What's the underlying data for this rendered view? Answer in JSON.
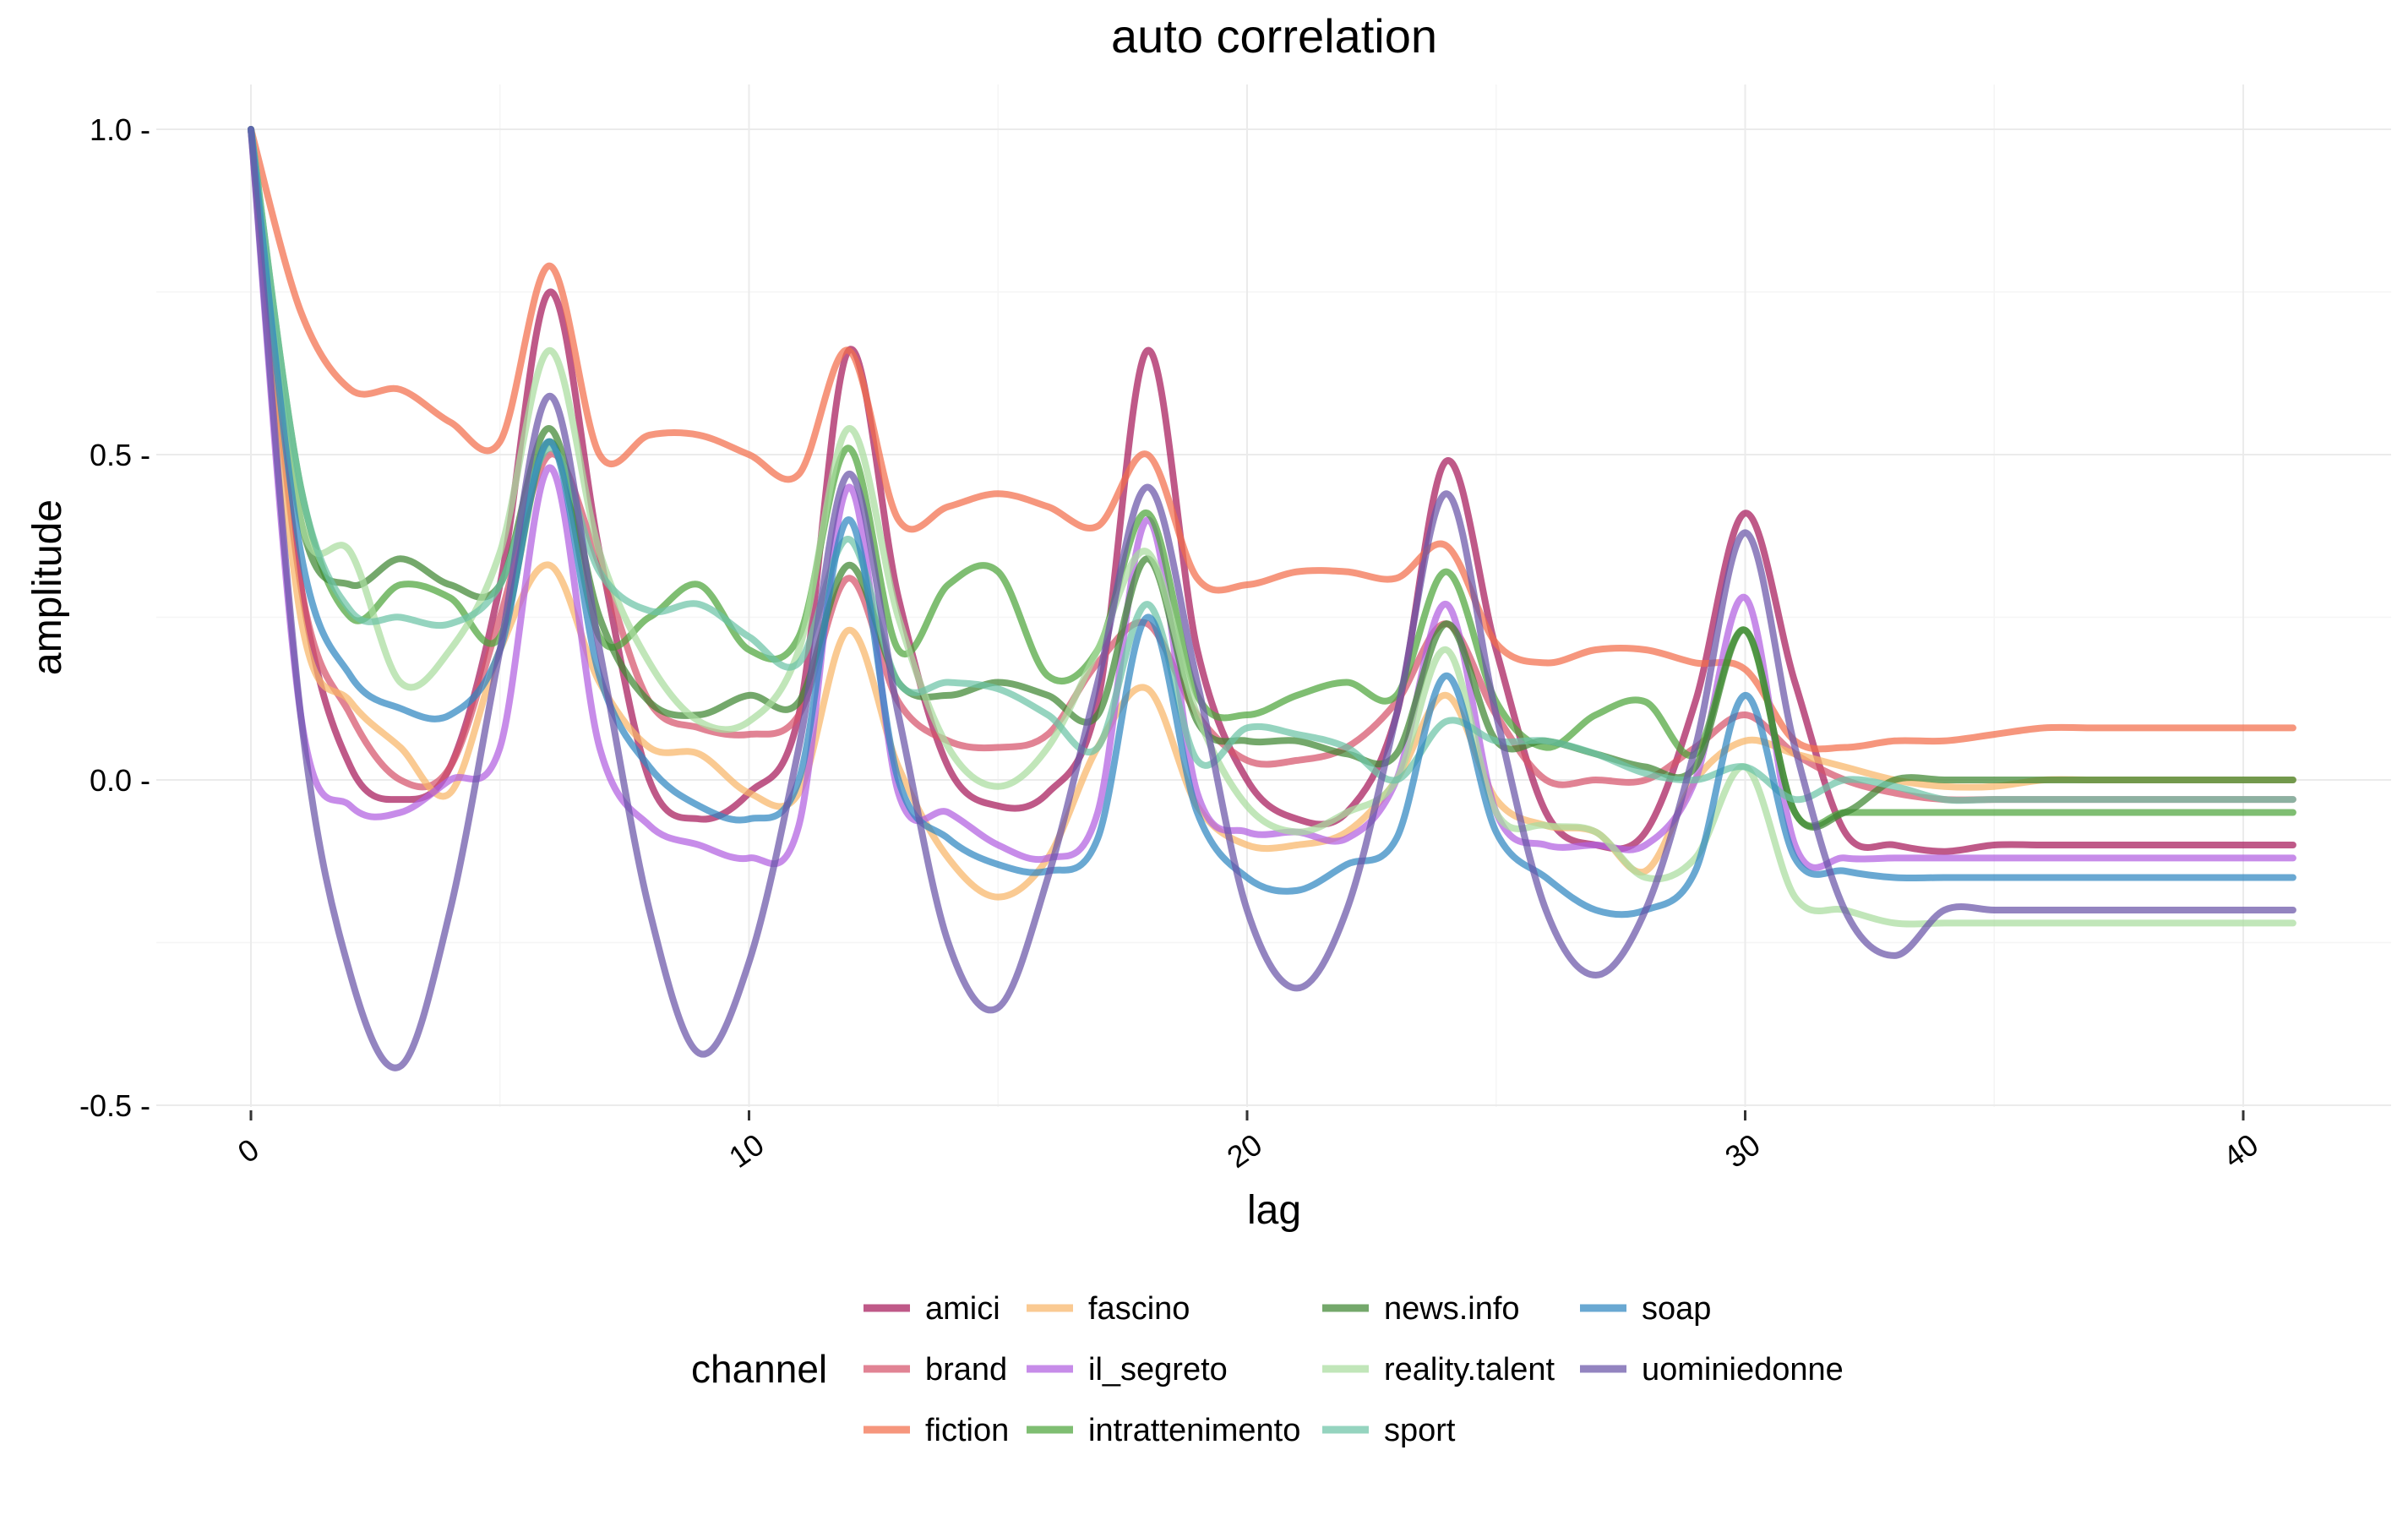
{
  "chart_data": {
    "type": "line",
    "title": "auto correlation",
    "xlabel": "lag",
    "ylabel": "amplitude",
    "xlim": [
      0,
      41
    ],
    "ylim": [
      -0.5,
      1.0
    ],
    "x_ticks": [
      0,
      10,
      20,
      30,
      40
    ],
    "x_tick_labels": [
      "0",
      "10",
      "20",
      "30",
      "40"
    ],
    "y_ticks": [
      1.0,
      0.5,
      0.0,
      -0.5
    ],
    "y_tick_labels": [
      "1.0 -",
      "0.5 -",
      "0.0 -",
      "-0.5 -"
    ],
    "grid": true,
    "legend": {
      "title": "channel",
      "position": "bottom"
    },
    "x": [
      0,
      1,
      2,
      3,
      4,
      5,
      6,
      7,
      8,
      9,
      10,
      11,
      12,
      13,
      14,
      15,
      16,
      17,
      18,
      19,
      20,
      21,
      22,
      23,
      24,
      25,
      26,
      27,
      28,
      29,
      30,
      31,
      32,
      33,
      34,
      35,
      36,
      37,
      38,
      39,
      40,
      41
    ],
    "series": [
      {
        "name": "amici",
        "color": "#a6195a",
        "values": [
          1.0,
          0.3,
          0.02,
          -0.03,
          0.02,
          0.3,
          0.75,
          0.35,
          0.0,
          -0.06,
          -0.02,
          0.1,
          0.66,
          0.28,
          0.02,
          -0.04,
          -0.02,
          0.12,
          0.66,
          0.2,
          0.0,
          -0.06,
          -0.05,
          0.1,
          0.49,
          0.2,
          -0.05,
          -0.1,
          -0.08,
          0.12,
          0.41,
          0.15,
          -0.08,
          -0.1,
          -0.11,
          -0.1,
          -0.1,
          -0.1,
          -0.1,
          -0.1,
          -0.1,
          -0.1
        ]
      },
      {
        "name": "brand",
        "color": "#d6536b",
        "values": [
          1.0,
          0.3,
          0.1,
          0.0,
          0.02,
          0.25,
          0.5,
          0.33,
          0.12,
          0.08,
          0.07,
          0.1,
          0.31,
          0.12,
          0.06,
          0.05,
          0.07,
          0.18,
          0.24,
          0.1,
          0.03,
          0.03,
          0.05,
          0.12,
          0.24,
          0.1,
          0.0,
          0.0,
          0.0,
          0.05,
          0.1,
          0.04,
          0.0,
          -0.02,
          -0.03,
          -0.03,
          -0.03,
          -0.03,
          -0.03,
          -0.03,
          -0.03,
          -0.03
        ]
      },
      {
        "name": "fiction",
        "color": "#f26d4b",
        "values": [
          1.0,
          0.72,
          0.6,
          0.6,
          0.55,
          0.52,
          0.79,
          0.5,
          0.53,
          0.53,
          0.5,
          0.47,
          0.66,
          0.4,
          0.42,
          0.44,
          0.42,
          0.39,
          0.5,
          0.31,
          0.3,
          0.32,
          0.32,
          0.31,
          0.36,
          0.21,
          0.18,
          0.2,
          0.2,
          0.18,
          0.17,
          0.06,
          0.05,
          0.06,
          0.06,
          0.07,
          0.08,
          0.08,
          0.08,
          0.08,
          0.08,
          0.08
        ]
      },
      {
        "name": "fascino",
        "color": "#f8b568",
        "values": [
          1.0,
          0.25,
          0.12,
          0.05,
          -0.02,
          0.2,
          0.33,
          0.15,
          0.05,
          0.04,
          -0.02,
          -0.02,
          0.23,
          0.02,
          -0.12,
          -0.18,
          -0.12,
          0.05,
          0.14,
          -0.04,
          -0.1,
          -0.1,
          -0.08,
          0.0,
          0.13,
          -0.03,
          -0.07,
          -0.08,
          -0.14,
          0.0,
          0.06,
          0.04,
          0.02,
          0.0,
          -0.01,
          -0.01,
          0.0,
          0.0,
          0.0,
          0.0,
          0.0,
          0.0
        ]
      },
      {
        "name": "il_segreto",
        "color": "#b260e0",
        "values": [
          1.0,
          0.1,
          -0.04,
          -0.05,
          0.0,
          0.05,
          0.48,
          0.05,
          -0.07,
          -0.1,
          -0.12,
          -0.07,
          0.45,
          -0.02,
          -0.05,
          -0.1,
          -0.12,
          -0.05,
          0.4,
          -0.02,
          -0.08,
          -0.08,
          -0.09,
          0.0,
          0.27,
          -0.05,
          -0.1,
          -0.1,
          -0.1,
          0.0,
          0.28,
          -0.1,
          -0.12,
          -0.12,
          -0.12,
          -0.12,
          -0.12,
          -0.12,
          -0.12,
          -0.12,
          -0.12,
          -0.12
        ]
      },
      {
        "name": "intrattenimento",
        "color": "#4ea53c",
        "values": [
          1.0,
          0.45,
          0.25,
          0.3,
          0.28,
          0.22,
          0.52,
          0.22,
          0.25,
          0.3,
          0.2,
          0.22,
          0.51,
          0.2,
          0.3,
          0.32,
          0.16,
          0.2,
          0.41,
          0.13,
          0.1,
          0.13,
          0.15,
          0.13,
          0.32,
          0.12,
          0.05,
          0.1,
          0.12,
          0.04,
          0.23,
          -0.05,
          -0.05,
          -0.05,
          -0.05,
          -0.05,
          -0.05,
          -0.05,
          -0.05,
          -0.05,
          -0.05,
          -0.05
        ]
      },
      {
        "name": "news.info",
        "color": "#3f8632",
        "values": [
          1.0,
          0.4,
          0.3,
          0.34,
          0.3,
          0.3,
          0.54,
          0.25,
          0.12,
          0.1,
          0.13,
          0.12,
          0.33,
          0.15,
          0.13,
          0.15,
          0.13,
          0.1,
          0.34,
          0.09,
          0.06,
          0.06,
          0.04,
          0.04,
          0.24,
          0.06,
          0.06,
          0.04,
          0.02,
          0.02,
          0.23,
          -0.05,
          -0.05,
          0.0,
          0.0,
          0.0,
          0.0,
          0.0,
          0.0,
          0.0,
          0.0,
          0.0
        ]
      },
      {
        "name": "reality.talent",
        "color": "#a9dc9e",
        "values": [
          1.0,
          0.4,
          0.35,
          0.15,
          0.2,
          0.35,
          0.66,
          0.35,
          0.18,
          0.09,
          0.09,
          0.2,
          0.54,
          0.25,
          0.05,
          -0.01,
          0.05,
          0.2,
          0.35,
          0.1,
          -0.04,
          -0.08,
          -0.05,
          0.0,
          0.2,
          -0.05,
          -0.07,
          -0.08,
          -0.15,
          -0.12,
          0.02,
          -0.18,
          -0.2,
          -0.22,
          -0.22,
          -0.22,
          -0.22,
          -0.22,
          -0.22,
          -0.22,
          -0.22,
          -0.22
        ]
      },
      {
        "name": "sport",
        "color": "#6cc4a6",
        "values": [
          1.0,
          0.45,
          0.26,
          0.25,
          0.24,
          0.3,
          0.51,
          0.32,
          0.26,
          0.27,
          0.22,
          0.18,
          0.37,
          0.15,
          0.15,
          0.14,
          0.1,
          0.05,
          0.27,
          0.03,
          0.08,
          0.07,
          0.05,
          0.0,
          0.09,
          0.06,
          0.06,
          0.04,
          0.01,
          0.0,
          0.02,
          -0.03,
          0.0,
          -0.01,
          -0.03,
          -0.03,
          -0.03,
          -0.03,
          -0.03,
          -0.03,
          -0.03,
          -0.03
        ]
      },
      {
        "name": "soap",
        "color": "#2f86c0",
        "values": [
          1.0,
          0.35,
          0.16,
          0.11,
          0.1,
          0.2,
          0.52,
          0.16,
          0.02,
          -0.04,
          -0.06,
          0.0,
          0.4,
          0.0,
          -0.09,
          -0.13,
          -0.14,
          -0.09,
          0.25,
          -0.05,
          -0.15,
          -0.17,
          -0.13,
          -0.09,
          0.16,
          -0.08,
          -0.15,
          -0.2,
          -0.2,
          -0.14,
          0.13,
          -0.12,
          -0.14,
          -0.15,
          -0.15,
          -0.15,
          -0.15,
          -0.15,
          -0.15,
          -0.15,
          -0.15,
          -0.15
        ]
      },
      {
        "name": "uominiedonne",
        "color": "#6a55a8",
        "values": [
          1.0,
          0.1,
          -0.3,
          -0.44,
          -0.2,
          0.2,
          0.59,
          0.2,
          -0.2,
          -0.42,
          -0.28,
          0.05,
          0.47,
          0.1,
          -0.25,
          -0.35,
          -0.15,
          0.15,
          0.45,
          0.15,
          -0.2,
          -0.32,
          -0.2,
          0.1,
          0.44,
          0.1,
          -0.2,
          -0.3,
          -0.2,
          0.05,
          0.38,
          0.05,
          -0.2,
          -0.27,
          -0.2,
          -0.2,
          -0.2,
          -0.2,
          -0.2,
          -0.2,
          -0.2,
          -0.2
        ]
      }
    ]
  }
}
